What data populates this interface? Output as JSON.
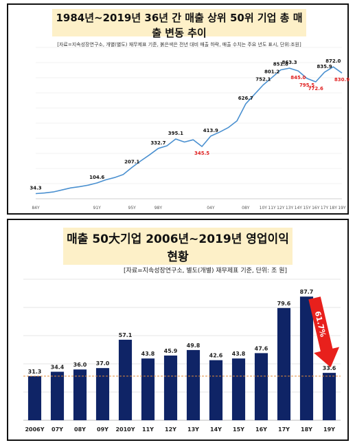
{
  "chart_data": [
    {
      "type": "line",
      "title": "1984년~2019년 36년 간 매출 상위 50위 기업 총 매출 변동 추이",
      "subtitle": "[자료=지속성장연구소, 개별(별도) 재무제표 기준, 붉은색은 전년 대비 매출 하락, 매출 수치는 주요 년도 표시, 단위:조원]",
      "xlabel": "",
      "ylabel": "",
      "ylim": [
        0,
        1000
      ],
      "x_tick_labels": [
        {
          "i": 0,
          "label": "84Y"
        },
        {
          "i": 7,
          "label": "91Y"
        },
        {
          "i": 11,
          "label": "95Y"
        },
        {
          "i": 14,
          "label": "98Y"
        },
        {
          "i": 20,
          "label": "04Y"
        },
        {
          "i": 24,
          "label": "08Y"
        },
        {
          "i": 26,
          "label": "10Y"
        },
        {
          "i": 27,
          "label": "11Y"
        },
        {
          "i": 28,
          "label": "12Y"
        },
        {
          "i": 29,
          "label": "13Y"
        },
        {
          "i": 30,
          "label": "14Y"
        },
        {
          "i": 31,
          "label": "15Y"
        },
        {
          "i": 32,
          "label": "16Y"
        },
        {
          "i": 33,
          "label": "17Y"
        },
        {
          "i": 34,
          "label": "18Y"
        },
        {
          "i": 35,
          "label": "19Y"
        }
      ],
      "values": [
        34.3,
        38,
        45,
        58,
        72,
        80,
        90,
        104.6,
        125,
        140,
        160,
        207.1,
        250,
        290,
        332.7,
        350,
        395.1,
        375,
        390,
        345.5,
        413.9,
        440,
        470,
        515,
        626.7,
        690,
        752.1,
        801.2,
        851.8,
        863.3,
        845.0,
        795.5,
        772.6,
        835.9,
        872.0,
        830.9
      ],
      "data_labels": [
        {
          "i": 0,
          "text": "34.3",
          "color": "#111111"
        },
        {
          "i": 7,
          "text": "104.6",
          "color": "#111111"
        },
        {
          "i": 11,
          "text": "207.1",
          "color": "#111111"
        },
        {
          "i": 14,
          "text": "332.7",
          "color": "#111111"
        },
        {
          "i": 16,
          "text": "395.1",
          "color": "#111111"
        },
        {
          "i": 19,
          "text": "345.5",
          "color": "#e02020"
        },
        {
          "i": 20,
          "text": "413.9",
          "color": "#111111"
        },
        {
          "i": 24,
          "text": "626.7",
          "color": "#111111"
        },
        {
          "i": 26,
          "text": "752.1",
          "color": "#111111"
        },
        {
          "i": 27,
          "text": "801.2",
          "color": "#111111"
        },
        {
          "i": 28,
          "text": "851.8",
          "color": "#111111"
        },
        {
          "i": 29,
          "text": "863.3",
          "color": "#111111"
        },
        {
          "i": 30,
          "text": "845.0",
          "color": "#e02020"
        },
        {
          "i": 31,
          "text": "795.5",
          "color": "#e02020"
        },
        {
          "i": 32,
          "text": "772.6",
          "color": "#e02020"
        },
        {
          "i": 33,
          "text": "835.9",
          "color": "#111111"
        },
        {
          "i": 34,
          "text": "872.0",
          "color": "#111111"
        },
        {
          "i": 35,
          "text": "830.9",
          "color": "#e02020"
        }
      ],
      "grid": true,
      "line_color": "#4a90d0",
      "grid_color": "#e6e6e6"
    },
    {
      "type": "bar",
      "title": "매출 50大기업 2006년~2019년 영업이익 현황",
      "subtitle": "[자료=지속성장연구소, 별도(개별) 재무제표 기준, 단위: 조 원]",
      "xlabel": "",
      "ylabel": "",
      "ylim": [
        0,
        100
      ],
      "categories": [
        "2006Y",
        "07Y",
        "08Y",
        "09Y",
        "2010Y",
        "11Y",
        "12Y",
        "13Y",
        "14Y",
        "15Y",
        "16Y",
        "17Y",
        "18Y",
        "19Y"
      ],
      "values": [
        31.3,
        34.4,
        36.0,
        37.0,
        57.1,
        43.8,
        45.9,
        49.8,
        42.6,
        43.8,
        47.6,
        79.6,
        87.7,
        33.6
      ],
      "value_labels": [
        "31.3",
        "34.4",
        "36.0",
        "37.0",
        "57.1",
        "43.8",
        "45.9",
        "49.8",
        "42.6",
        "43.8",
        "47.6",
        "79.6",
        "87.7",
        "33.6"
      ],
      "reference_line": 31.3,
      "annotation": {
        "text": "61.7%",
        "from": "18Y",
        "to": "19Y"
      },
      "grid": true,
      "bar_color": "#0f2466",
      "reference_line_color": "#e08a3a",
      "arrow_color": "#e8201c"
    }
  ]
}
